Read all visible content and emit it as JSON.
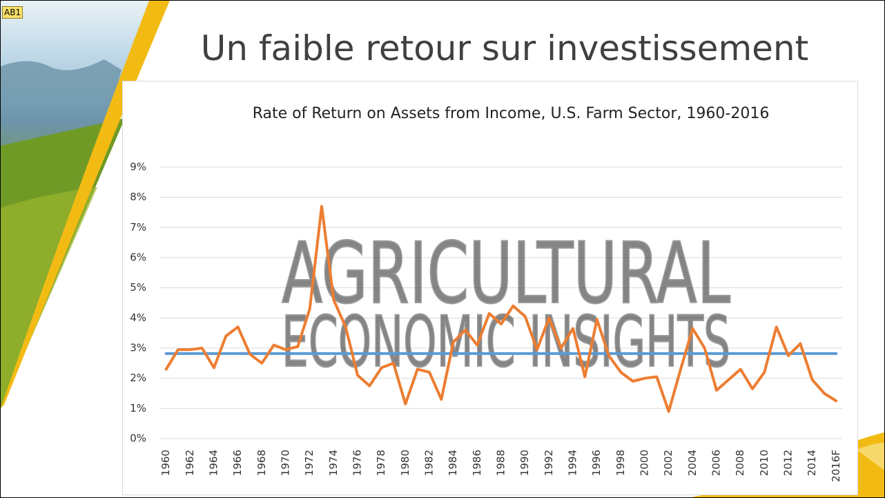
{
  "slide_title": "Un faible retour sur investissement",
  "tag": "AB1",
  "watermark": [
    "AGRICULTURAL",
    "ECONOMIC INSIGHTS"
  ],
  "chart_data": {
    "type": "line",
    "title": "Rate of Return on Assets from Income, U.S. Farm Sector, 1960-2016",
    "categories": [
      "1960",
      null,
      "1962",
      null,
      "1964",
      null,
      "1966",
      null,
      "1968",
      null,
      "1970",
      null,
      "1972",
      null,
      "1974",
      null,
      "1976",
      null,
      "1978",
      null,
      "1980",
      null,
      "1982",
      null,
      "1984",
      null,
      "1986",
      null,
      "1988",
      null,
      "1990",
      null,
      "1992",
      null,
      "1994",
      null,
      "1996",
      null,
      "1998",
      null,
      "2000",
      null,
      "2002",
      null,
      "2004",
      null,
      "2006",
      null,
      "2008",
      null,
      "2010",
      null,
      "2012",
      null,
      "2014",
      null,
      "2016F"
    ],
    "series": [
      {
        "color": "#ed7d31",
        "values": [
          2.3,
          2.95,
          2.95,
          3.0,
          2.35,
          3.4,
          3.7,
          2.8,
          2.5,
          3.1,
          2.95,
          3.05,
          4.3,
          7.7,
          4.6,
          3.7,
          2.1,
          1.75,
          2.35,
          2.5,
          1.15,
          2.3,
          2.2,
          1.3,
          3.2,
          3.6,
          3.1,
          4.15,
          3.8,
          4.4,
          4.05,
          2.95,
          4.0,
          3.0,
          3.65,
          2.05,
          3.95,
          2.75,
          2.2,
          1.9,
          2.0,
          2.05,
          0.9,
          2.3,
          3.65,
          3.0,
          1.6,
          1.95,
          2.3,
          1.65,
          2.2,
          3.7,
          2.75,
          3.15,
          1.95,
          1.5,
          1.25
        ]
      },
      {
        "color": "#5b9bd5",
        "values": [
          2.82,
          2.82,
          2.82,
          2.82,
          2.82,
          2.82,
          2.82,
          2.82,
          2.82,
          2.82,
          2.82,
          2.82,
          2.82,
          2.82,
          2.82,
          2.82,
          2.82,
          2.82,
          2.82,
          2.82,
          2.82,
          2.82,
          2.82,
          2.82,
          2.82,
          2.82,
          2.82,
          2.82,
          2.82,
          2.82,
          2.82,
          2.82,
          2.82,
          2.82,
          2.82,
          2.82,
          2.82,
          2.82,
          2.82,
          2.82,
          2.82,
          2.82,
          2.82,
          2.82,
          2.82,
          2.82,
          2.82,
          2.82,
          2.82,
          2.82,
          2.82,
          2.82,
          2.82,
          2.82,
          2.82,
          2.82,
          2.82
        ]
      }
    ],
    "ylim": [
      0,
      9
    ],
    "yticks": [
      {
        "value": 0,
        "label": "0%"
      },
      {
        "value": 1,
        "label": "1%"
      },
      {
        "value": 2,
        "label": "2%"
      },
      {
        "value": 3,
        "label": "3%"
      },
      {
        "value": 4,
        "label": "4%"
      },
      {
        "value": 5,
        "label": "5%"
      },
      {
        "value": 6,
        "label": "6%"
      },
      {
        "value": 7,
        "label": "7%"
      },
      {
        "value": 8,
        "label": "8%"
      },
      {
        "value": 9,
        "label": "9%"
      }
    ],
    "grid": true
  }
}
